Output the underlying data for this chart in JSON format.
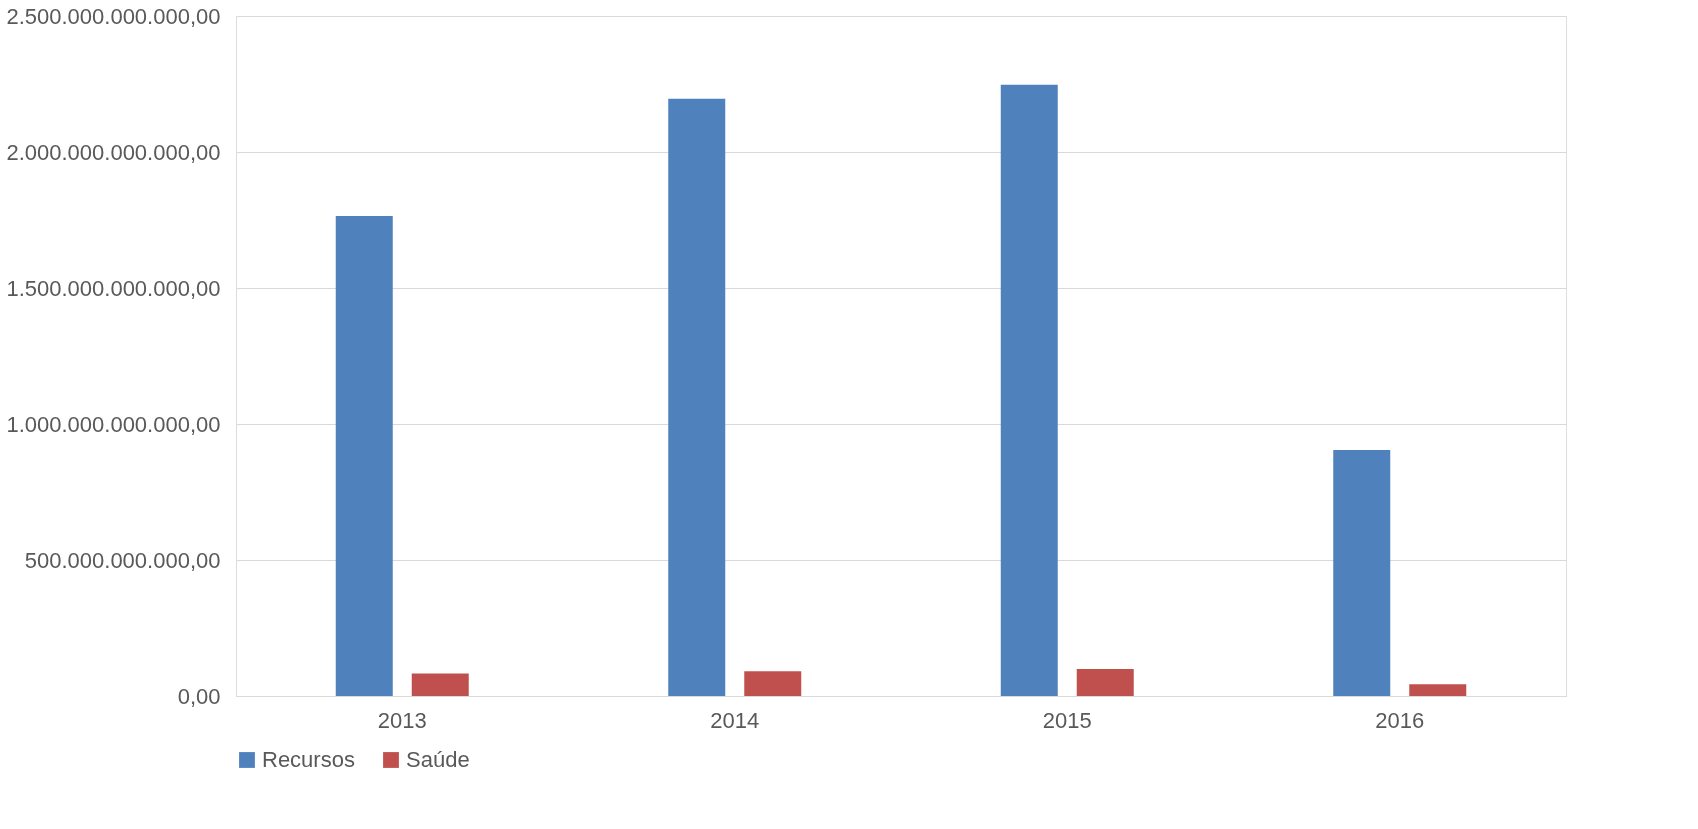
{
  "chart_data": {
    "type": "bar",
    "categories": [
      "2013",
      "2014",
      "2015",
      "2016"
    ],
    "series": [
      {
        "name": "Recursos",
        "color": "#4f81bd",
        "values": [
          1765000000000,
          2196000000000,
          2247000000000,
          904000000000
        ]
      },
      {
        "name": "Saúde",
        "color": "#c0504d",
        "values": [
          83000000000,
          91000000000,
          99000000000,
          43000000000
        ]
      }
    ],
    "ylim": [
      0,
      2500000000000
    ],
    "yticks": [
      {
        "value": 0,
        "label": "0,00"
      },
      {
        "value": 500000000000,
        "label": "500.000.000.000,00"
      },
      {
        "value": 1000000000000,
        "label": "1.000.000.000.000,00"
      },
      {
        "value": 1500000000000,
        "label": "1.500.000.000.000,00"
      },
      {
        "value": 2000000000000,
        "label": "2.000.000.000.000,00"
      },
      {
        "value": 2500000000000,
        "label": "2.500.000.000.000,00"
      }
    ],
    "grid": "y",
    "legend": "bottom"
  }
}
